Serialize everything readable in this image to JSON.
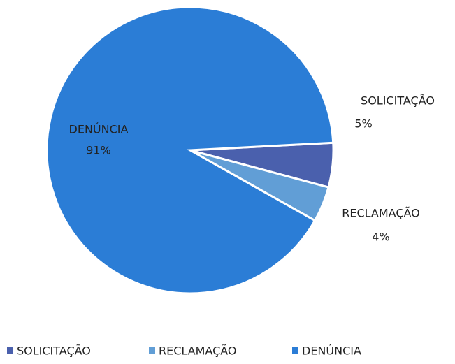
{
  "chart_data": {
    "type": "pie",
    "categories": [
      "SOLICITAÇÃO",
      "RECLAMAÇÃO",
      "DENÚNCIA"
    ],
    "values": [
      5,
      4,
      91
    ],
    "value_labels": [
      "5%",
      "4%",
      "91%"
    ],
    "colors": [
      "#4a60ad",
      "#619ed6",
      "#2b7dd6"
    ],
    "legend": "bottom"
  }
}
